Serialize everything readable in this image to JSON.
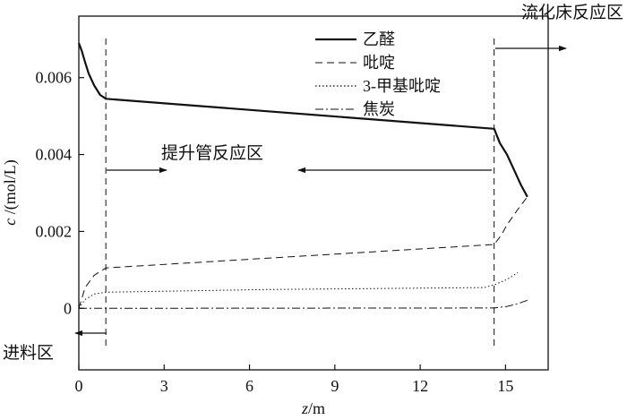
{
  "chart_data": {
    "type": "line",
    "xlabel": {
      "var": "z",
      "unit": "/m"
    },
    "ylabel": {
      "var": "c",
      "unit": " /(mol/L)"
    },
    "xlim": [
      0,
      16.5
    ],
    "ylim": [
      -0.0016,
      0.0076
    ],
    "grid": false,
    "legend_position": "top-center",
    "x_ticks": [
      {
        "value": 0,
        "label": "0"
      },
      {
        "value": 3,
        "label": "3"
      },
      {
        "value": 6,
        "label": "6"
      },
      {
        "value": 9,
        "label": "9"
      },
      {
        "value": 12,
        "label": "12"
      },
      {
        "value": 15,
        "label": "15"
      }
    ],
    "y_ticks": [
      {
        "value": 0,
        "label": "0"
      },
      {
        "value": 0.002,
        "label": "0.002"
      },
      {
        "value": 0.004,
        "label": "0.004"
      },
      {
        "value": 0.006,
        "label": "0.006"
      }
    ],
    "series": [
      {
        "name": "乙醛",
        "style": "solid",
        "points": [
          [
            0,
            0.0069
          ],
          [
            0.1,
            0.0067
          ],
          [
            0.22,
            0.0064
          ],
          [
            0.35,
            0.0061
          ],
          [
            0.54,
            0.0058
          ],
          [
            0.75,
            0.00555
          ],
          [
            0.95,
            0.00545
          ],
          [
            14.6,
            0.00467
          ],
          [
            14.8,
            0.0043
          ],
          [
            15.05,
            0.004
          ],
          [
            15.3,
            0.0036
          ],
          [
            15.55,
            0.0032
          ],
          [
            15.77,
            0.0029
          ]
        ]
      },
      {
        "name": "吡啶",
        "style": "dashed",
        "points": [
          [
            0,
            0.0
          ],
          [
            0.22,
            0.00054
          ],
          [
            0.54,
            0.00086
          ],
          [
            0.95,
            0.00105
          ],
          [
            14.6,
            0.00166
          ],
          [
            14.85,
            0.0019
          ],
          [
            15.05,
            0.00217
          ],
          [
            15.43,
            0.00257
          ],
          [
            15.77,
            0.0029
          ]
        ]
      },
      {
        "name": "3-甲基吡啶",
        "style": "dotted",
        "points": [
          [
            0,
            0.0
          ],
          [
            0.22,
            0.00023
          ],
          [
            0.54,
            0.00037
          ],
          [
            0.95,
            0.00042
          ],
          [
            6.6,
            0.00049
          ],
          [
            14.25,
            0.00054
          ],
          [
            14.6,
            0.00061
          ],
          [
            15.05,
            0.00075
          ],
          [
            15.43,
            0.00093
          ]
        ]
      },
      {
        "name": "焦炭",
        "style": "dash-dot",
        "points": [
          [
            0,
            0.0
          ],
          [
            14.6,
            1e-05
          ],
          [
            15.05,
            5e-05
          ],
          [
            15.43,
            0.00012
          ],
          [
            15.77,
            0.00021
          ]
        ]
      }
    ],
    "zone_boundaries": [
      0.95,
      14.6
    ],
    "annotations": {
      "fluidized_bed_zone": "流化床反应区",
      "riser_zone": "提升管反应区",
      "feed_zone": "进料区"
    }
  }
}
